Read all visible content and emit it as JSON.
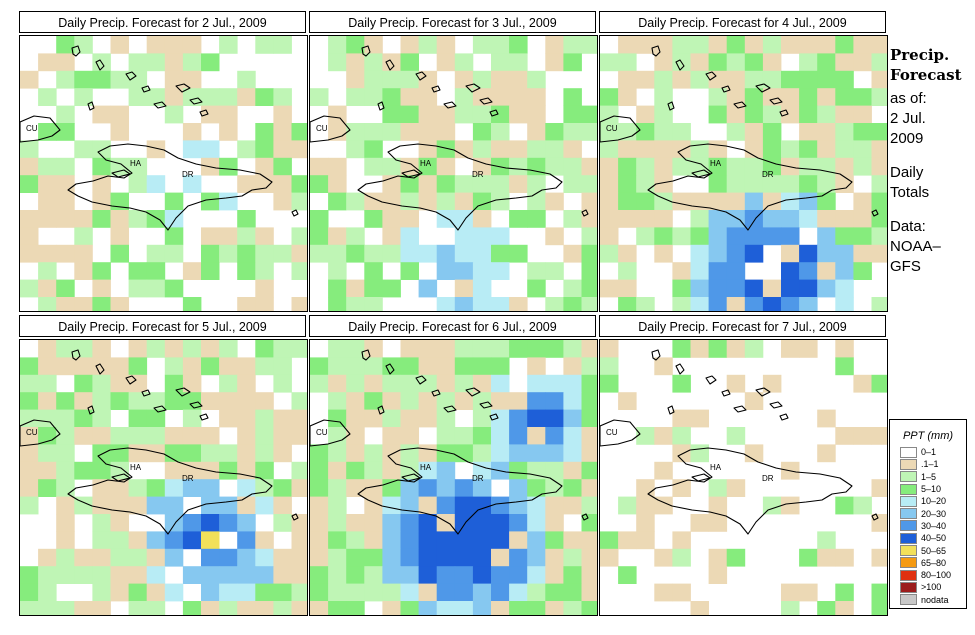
{
  "panels": [
    {
      "title": "Daily Precip. Forecast for  2 Jul., 2009",
      "cells": []
    },
    {
      "title": "Daily Precip. Forecast for  3 Jul., 2009",
      "cells": []
    },
    {
      "title": "Daily Precip. Forecast for  4 Jul., 2009",
      "cells": []
    },
    {
      "title": "Daily Precip. Forecast for  5 Jul., 2009",
      "cells": []
    },
    {
      "title": "Daily Precip. Forecast for  6 Jul., 2009",
      "cells": []
    },
    {
      "title": "Daily Precip. Forecast for  7 Jul., 2009",
      "cells": []
    }
  ],
  "map_labels": {
    "cuba": "CU",
    "haiti": "HA",
    "dominican_republic": "DR"
  },
  "sidebar": {
    "title_line1": "Precip.",
    "title_line2": "Forecast",
    "asof_line1": "as of:",
    "asof_line2": "2 Jul.",
    "asof_line3": "2009",
    "totals_line1": "Daily",
    "totals_line2": "Totals",
    "data_line1": "Data:",
    "data_line2": "NOAA–",
    "data_line3": "GFS"
  },
  "legend": {
    "title": "PPT (mm)",
    "items": [
      {
        "label": "0–1",
        "color": "#ffffff"
      },
      {
        "label": ".1–1",
        "color": "#ecd9b5"
      },
      {
        "label": "1–5",
        "color": "#bff5b5"
      },
      {
        "label": "5–10",
        "color": "#86ec7d"
      },
      {
        "label": "10–20",
        "color": "#b8ecf5"
      },
      {
        "label": "20–30",
        "color": "#86c8f0"
      },
      {
        "label": "30–40",
        "color": "#4f98e8"
      },
      {
        "label": "40–50",
        "color": "#1e5fd8"
      },
      {
        "label": "50–65",
        "color": "#f2e05a"
      },
      {
        "label": "65–80",
        "color": "#f59a12"
      },
      {
        "label": "80–100",
        "color": "#e03010"
      },
      {
        "label": ">100",
        "color": "#9c1d1d"
      },
      {
        "label": "nodata",
        "color": "#c8c8c8"
      }
    ]
  }
}
